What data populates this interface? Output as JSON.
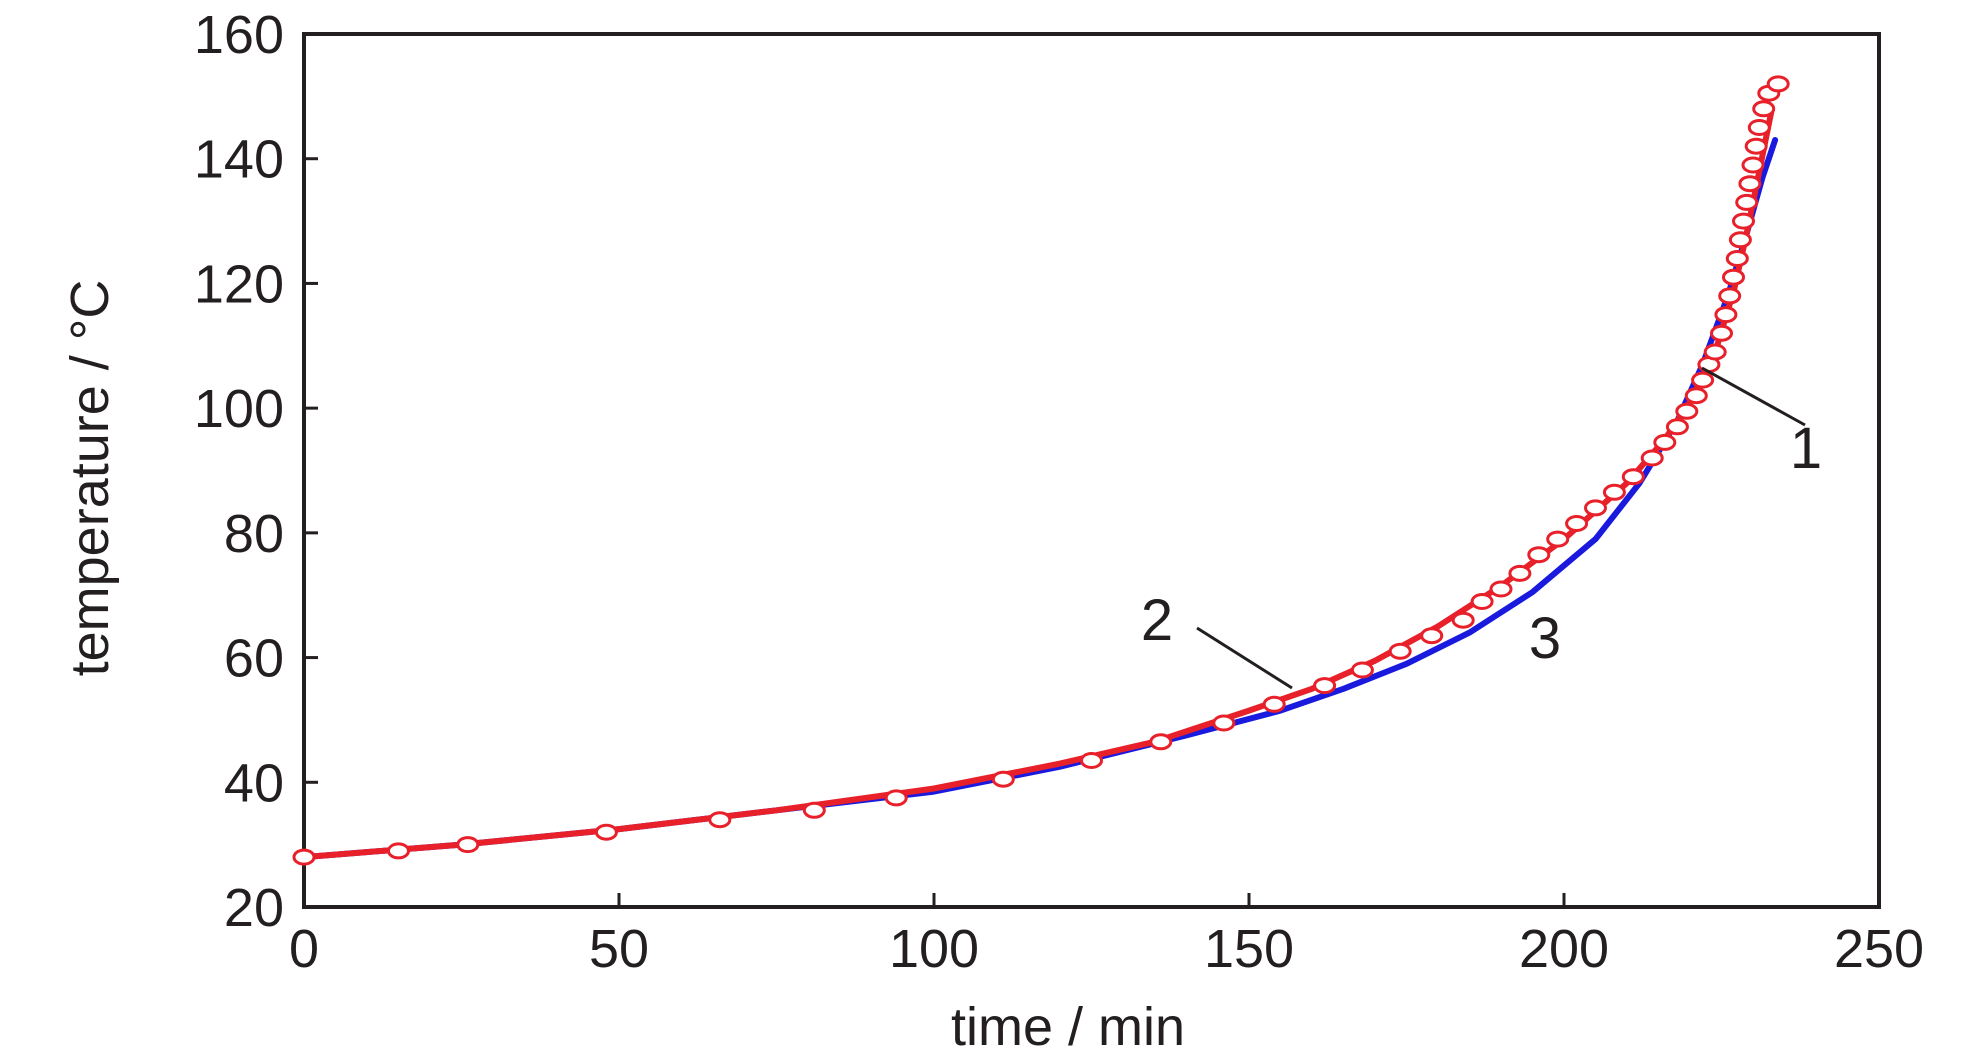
{
  "chart_data": {
    "type": "line",
    "title": "",
    "xlabel": "time / min",
    "ylabel": "temperature / °C",
    "xlim": [
      0,
      250
    ],
    "ylim": [
      20,
      160
    ],
    "xticks": [
      0,
      50,
      100,
      150,
      200,
      250
    ],
    "yticks": [
      20,
      40,
      60,
      80,
      100,
      120,
      140,
      160
    ],
    "grid": false,
    "colors": {
      "series1": "#e8202a",
      "series2": "#1a1adf",
      "markers": "#e8202a",
      "axes": "#231f20"
    },
    "series": [
      {
        "label": "1",
        "style": "markers",
        "points": [
          [
            0,
            28
          ],
          [
            15,
            29
          ],
          [
            26,
            30
          ],
          [
            48,
            32
          ],
          [
            66,
            34
          ],
          [
            81,
            35.5
          ],
          [
            94,
            37.5
          ],
          [
            111,
            40.5
          ],
          [
            125,
            43.5
          ],
          [
            136,
            46.5
          ],
          [
            146,
            49.5
          ],
          [
            154,
            52.5
          ],
          [
            162,
            55.5
          ],
          [
            168,
            58
          ],
          [
            174,
            61
          ],
          [
            179,
            63.5
          ],
          [
            184,
            66
          ],
          [
            187,
            69
          ],
          [
            190,
            71
          ],
          [
            193,
            73.5
          ],
          [
            196,
            76.5
          ],
          [
            199,
            79
          ],
          [
            202,
            81.5
          ],
          [
            205,
            84
          ],
          [
            208,
            86.5
          ],
          [
            211,
            89
          ],
          [
            214,
            92
          ],
          [
            216,
            94.5
          ],
          [
            218,
            97
          ],
          [
            219.5,
            99.5
          ],
          [
            221,
            102
          ],
          [
            222,
            104.5
          ],
          [
            223,
            107
          ],
          [
            224,
            109
          ],
          [
            225,
            112
          ],
          [
            225.7,
            115
          ],
          [
            226.3,
            118
          ],
          [
            226.9,
            121
          ],
          [
            227.5,
            124
          ],
          [
            228,
            127
          ],
          [
            228.5,
            130
          ],
          [
            229,
            133
          ],
          [
            229.5,
            136
          ],
          [
            230,
            139
          ],
          [
            230.5,
            142
          ],
          [
            231,
            145
          ],
          [
            231.7,
            148
          ],
          [
            232.5,
            150.5
          ],
          [
            234,
            152
          ]
        ]
      },
      {
        "label": "2",
        "style": "line",
        "points": [
          [
            0,
            28
          ],
          [
            25,
            30
          ],
          [
            50,
            32.5
          ],
          [
            75,
            35.5
          ],
          [
            100,
            39
          ],
          [
            120,
            43
          ],
          [
            135,
            46.5
          ],
          [
            150,
            51.5
          ],
          [
            160,
            55
          ],
          [
            170,
            59.5
          ],
          [
            180,
            65
          ],
          [
            190,
            71.5
          ],
          [
            200,
            79
          ],
          [
            210,
            88
          ],
          [
            216,
            95
          ],
          [
            220,
            101
          ],
          [
            224,
            109
          ],
          [
            227,
            119
          ],
          [
            229,
            128
          ],
          [
            231,
            138
          ],
          [
            233,
            148
          ]
        ]
      },
      {
        "label": "3",
        "style": "line",
        "points": [
          [
            0,
            28
          ],
          [
            25,
            30
          ],
          [
            50,
            32.5
          ],
          [
            75,
            35.5
          ],
          [
            100,
            38.5
          ],
          [
            120,
            42.5
          ],
          [
            140,
            47.5
          ],
          [
            155,
            51.5
          ],
          [
            165,
            55
          ],
          [
            175,
            59
          ],
          [
            185,
            64
          ],
          [
            195,
            70.5
          ],
          [
            205,
            79
          ],
          [
            212,
            88
          ],
          [
            218,
            98
          ],
          [
            222,
            107
          ],
          [
            226,
            118
          ],
          [
            229,
            128
          ],
          [
            231.5,
            137
          ],
          [
            233.5,
            143
          ]
        ]
      }
    ],
    "annotations": [
      {
        "text": "1",
        "target_series": "1"
      },
      {
        "text": "2",
        "target_series": "2"
      },
      {
        "text": "3",
        "target_series": "3"
      }
    ]
  }
}
